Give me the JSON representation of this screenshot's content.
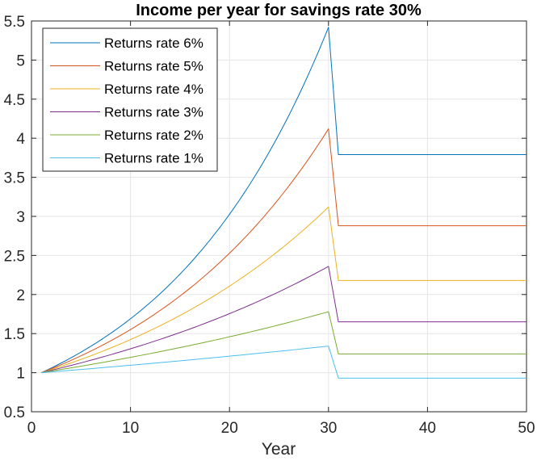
{
  "chart_data": {
    "type": "line",
    "title": "Income per year for savings rate 30%",
    "xlabel": "Year",
    "ylabel": "",
    "xlim": [
      0,
      50
    ],
    "ylim": [
      0.5,
      5.5
    ],
    "xticks": [
      0,
      10,
      20,
      30,
      40,
      50
    ],
    "yticks": [
      0.5,
      1,
      1.5,
      2,
      2.5,
      3,
      3.5,
      4,
      4.5,
      5,
      5.5
    ],
    "xtick_labels": [
      "0",
      "10",
      "20",
      "30",
      "40",
      "50"
    ],
    "ytick_labels": [
      "0.5",
      "1",
      "1.5",
      "2",
      "2.5",
      "3",
      "3.5",
      "4",
      "4.5",
      "5",
      "5.5"
    ],
    "grid": true,
    "legend_position": "top-left",
    "series": [
      {
        "name": "Returns rate 6%",
        "color": "#0072BD",
        "growth_rate": 0.06,
        "peak_year": 30,
        "peak_value": 5.42,
        "post_value": 3.79
      },
      {
        "name": "Returns rate 5%",
        "color": "#D95319",
        "growth_rate": 0.05,
        "peak_year": 30,
        "peak_value": 4.12,
        "post_value": 2.88
      },
      {
        "name": "Returns rate 4%",
        "color": "#EDB120",
        "growth_rate": 0.04,
        "peak_year": 30,
        "peak_value": 3.12,
        "post_value": 2.18
      },
      {
        "name": "Returns rate 3%",
        "color": "#7E2F8E",
        "growth_rate": 0.03,
        "peak_year": 30,
        "peak_value": 2.36,
        "post_value": 1.65
      },
      {
        "name": "Returns rate 2%",
        "color": "#77AC30",
        "growth_rate": 0.02,
        "peak_year": 30,
        "peak_value": 1.78,
        "post_value": 1.24
      },
      {
        "name": "Returns rate 1%",
        "color": "#4DBEEE",
        "growth_rate": 0.01,
        "peak_year": 30,
        "peak_value": 1.34,
        "post_value": 0.93
      }
    ],
    "x_start": 1,
    "x_end": 50,
    "drop_year": 31
  }
}
